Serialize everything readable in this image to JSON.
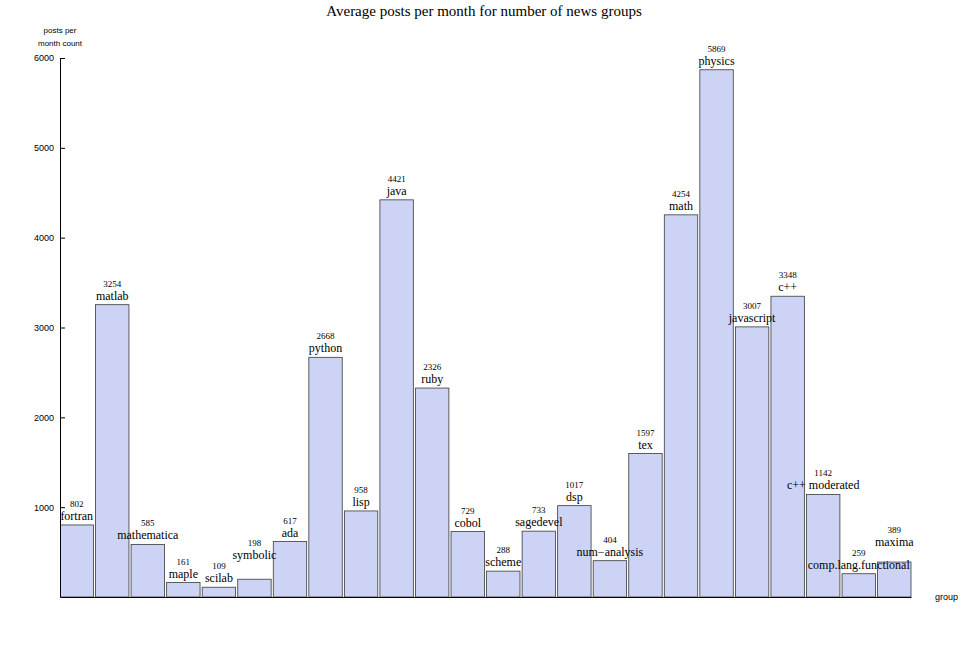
{
  "chart_data": {
    "type": "bar",
    "title": "Average posts per month for number of news groups",
    "y_label": "posts per\nmonth count",
    "x_label": "group",
    "categories": [
      "fortran",
      "matlab",
      "mathematica",
      "maple",
      "scilab",
      "symbolic",
      "ada",
      "python",
      "lisp",
      "java",
      "ruby",
      "cobol",
      "scheme",
      "sagedevel",
      "dsp",
      "num−analysis",
      "tex",
      "math",
      "physics",
      "javascript",
      "c++",
      "c++ moderated",
      "comp.lang.functional",
      "maxima"
    ],
    "values": [
      802,
      3254,
      585,
      161,
      109,
      198,
      617,
      2668,
      958,
      4421,
      2326,
      729,
      288,
      733,
      1017,
      404,
      1597,
      4254,
      5869,
      3007,
      3348,
      1142,
      259,
      389
    ],
    "color": "#ccd3f4",
    "ylim": [
      0,
      6000
    ],
    "yticks": [
      1000,
      2000,
      3000,
      4000,
      5000,
      6000
    ],
    "grid": false,
    "data_labels": true,
    "tick_labels": "y"
  }
}
